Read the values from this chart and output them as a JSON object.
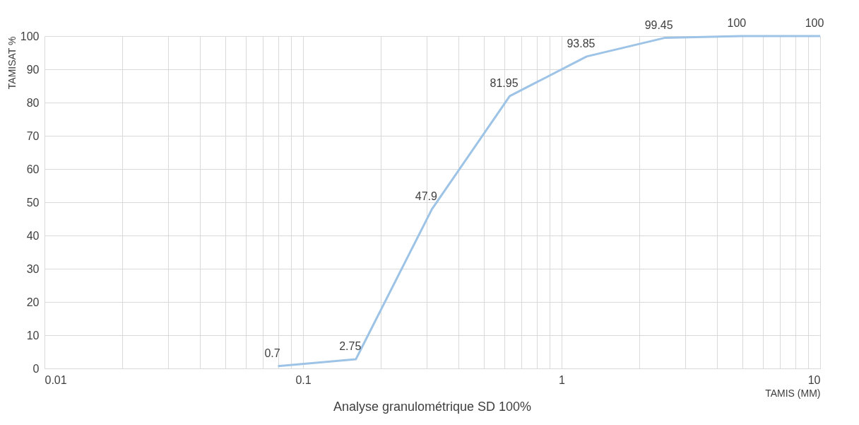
{
  "chart_data": {
    "type": "line",
    "title": "Analyse granulométrique SD 100%",
    "xlabel": "TAMIS (MM)",
    "ylabel": "TAMISAT %",
    "x": [
      0.08,
      0.16,
      0.315,
      0.63,
      1.25,
      2.5,
      5,
      10
    ],
    "series": [
      {
        "color": "#9dc3e6",
        "values": [
          0.7,
          2.75,
          47.9,
          81.95,
          93.85,
          99.45,
          100,
          100
        ]
      }
    ],
    "data_labels": true,
    "log": "x",
    "grid": true,
    "legend": false,
    "marker": "none",
    "line_style": "solid",
    "xlim": [
      0.01,
      10
    ],
    "xticks": [
      0.01,
      {
        "value": 0.02,
        "label": null
      },
      {
        "value": 0.03,
        "label": null
      },
      {
        "value": 0.04,
        "label": null
      },
      {
        "value": 0.05,
        "label": null
      },
      {
        "value": 0.06,
        "label": null
      },
      {
        "value": 0.07,
        "label": null
      },
      {
        "value": 0.08,
        "label": null
      },
      {
        "value": 0.09,
        "label": null
      },
      0.1,
      {
        "value": 0.2,
        "label": null
      },
      {
        "value": 0.3,
        "label": null
      },
      {
        "value": 0.4,
        "label": null
      },
      {
        "value": 0.5,
        "label": null
      },
      {
        "value": 0.6,
        "label": null
      },
      {
        "value": 0.7,
        "label": null
      },
      {
        "value": 0.8,
        "label": null
      },
      {
        "value": 0.9,
        "label": null
      },
      1,
      {
        "value": 2,
        "label": null
      },
      {
        "value": 3,
        "label": null
      },
      {
        "value": 4,
        "label": null
      },
      {
        "value": 5,
        "label": null
      },
      {
        "value": 6,
        "label": null
      },
      {
        "value": 7,
        "label": null
      },
      {
        "value": 8,
        "label": null
      },
      {
        "value": 9,
        "label": null
      },
      10
    ],
    "ylim": [
      0,
      100
    ],
    "yticks": [
      0,
      10,
      20,
      30,
      40,
      50,
      60,
      70,
      80,
      90,
      100
    ]
  }
}
